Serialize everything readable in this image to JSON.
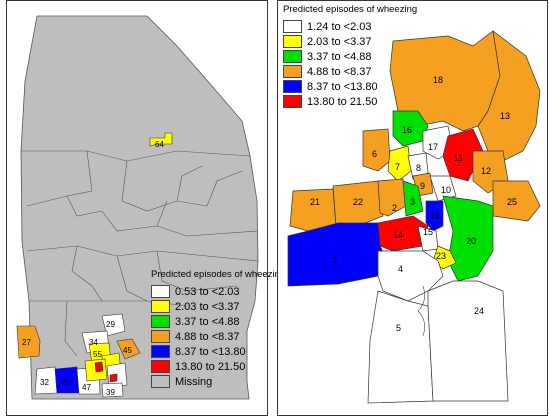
{
  "left_map": {
    "legend_title": "Predicted episodes of wheezing",
    "legend": [
      {
        "label": "0.53 to <2.03",
        "color": "#ffffff"
      },
      {
        "label": "2.03 to <3.37",
        "color": "#ffff00"
      },
      {
        "label": "3.37 to <4.88",
        "color": "#00e000"
      },
      {
        "label": "4.88 to <8.37",
        "color": "#f5a020"
      },
      {
        "label": "8.37 to <13.80",
        "color": "#0000ff"
      },
      {
        "label": "13.80 to 21.50",
        "color": "#ff0000"
      },
      {
        "label": "Missing",
        "color": "#bebebe"
      }
    ],
    "region_labels": [
      "64",
      "27",
      "29",
      "34",
      "55",
      "45",
      "32",
      "28",
      "47",
      "39"
    ]
  },
  "right_map": {
    "legend_title": "Predicted episodes of wheezing",
    "legend": [
      {
        "label": "1.24 to <2.03",
        "color": "#ffffff"
      },
      {
        "label": "2.03 to <3.37",
        "color": "#ffff00"
      },
      {
        "label": "3.37 to <4.88",
        "color": "#00e000"
      },
      {
        "label": "4.88 to <8.37",
        "color": "#f5a020"
      },
      {
        "label": "8.37 to <13.80",
        "color": "#0000ff"
      },
      {
        "label": "13.80 to 21.50",
        "color": "#ff0000"
      }
    ],
    "region_labels": [
      "18",
      "13",
      "16",
      "17",
      "6",
      "11",
      "7",
      "8",
      "12",
      "9",
      "10",
      "21",
      "22",
      "2",
      "3",
      "25",
      "19",
      "14",
      "15",
      "20",
      "1",
      "23",
      "4",
      "5",
      "24"
    ]
  }
}
